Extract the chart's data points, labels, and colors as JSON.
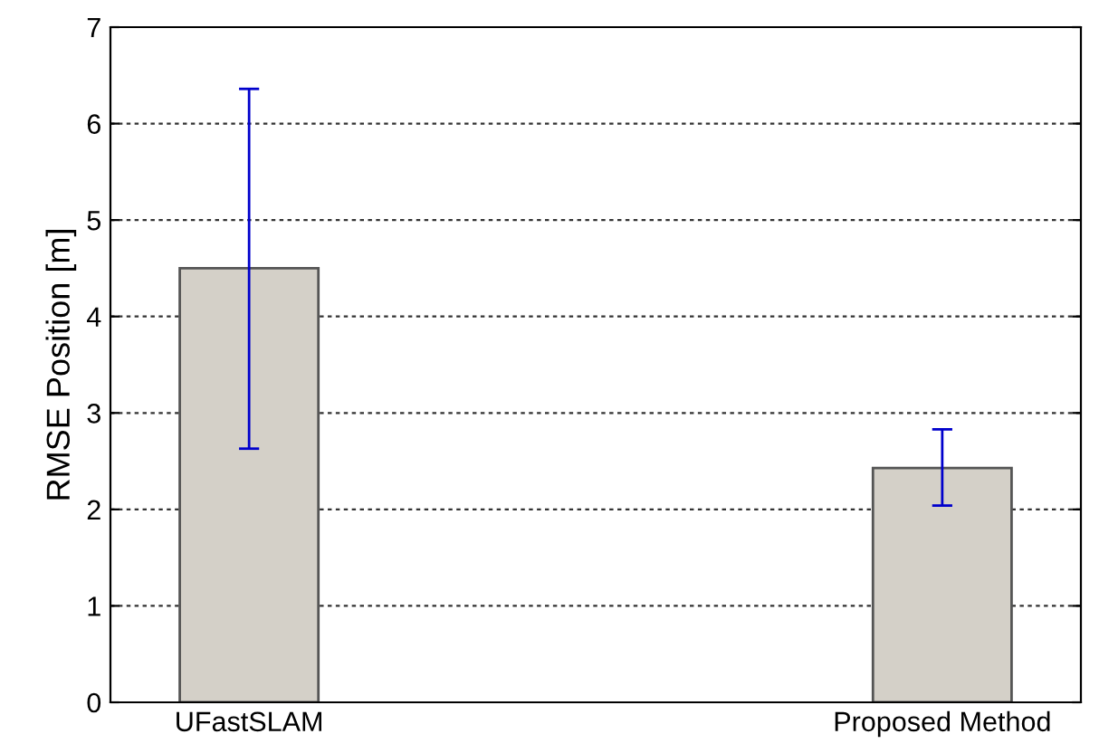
{
  "chart_data": {
    "type": "bar",
    "ylabel": "RMSE Position [m]",
    "categories": [
      "UFastSLAM",
      "Proposed Method"
    ],
    "values": [
      4.5,
      2.43
    ],
    "errors": [
      [
        2.63,
        6.36
      ],
      [
        2.04,
        2.83
      ]
    ],
    "color": "#d4d0c8",
    "ylim": [
      0,
      7
    ],
    "yticks": [
      0,
      1,
      2,
      3,
      4,
      5,
      6,
      7
    ],
    "grid": "y"
  }
}
